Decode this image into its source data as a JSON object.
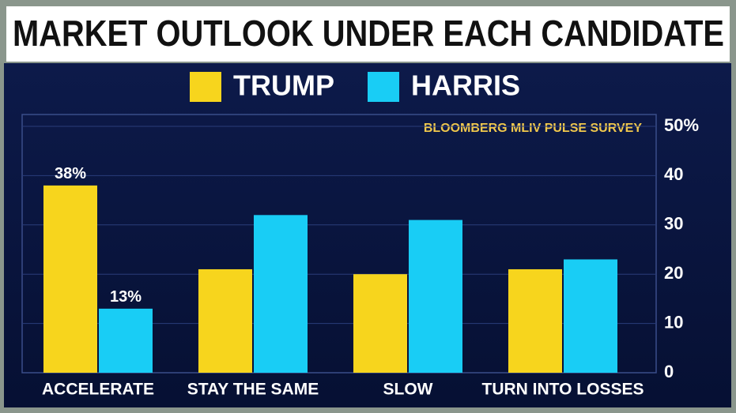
{
  "chart_data": {
    "type": "bar",
    "title": "MARKET OUTLOOK UNDER EACH CANDIDATE",
    "annotation": "BLOOMBERG MLIV PULSE SURVEY",
    "categories": [
      "ACCELERATE",
      "STAY THE SAME",
      "SLOW",
      "TURN INTO LOSSES"
    ],
    "series": [
      {
        "name": "TRUMP",
        "color": "#f7d51d",
        "values": [
          38,
          21,
          20,
          21
        ],
        "value_labels": [
          "38%",
          null,
          null,
          null
        ]
      },
      {
        "name": "HARRIS",
        "color": "#19cdf5",
        "values": [
          13,
          32,
          31,
          23
        ],
        "value_labels": [
          "13%",
          null,
          null,
          null
        ]
      }
    ],
    "ylim": [
      0,
      50
    ],
    "yticks": [
      0,
      10,
      20,
      30,
      40,
      {
        "value": 50,
        "label": "50%"
      }
    ],
    "grid": true
  }
}
